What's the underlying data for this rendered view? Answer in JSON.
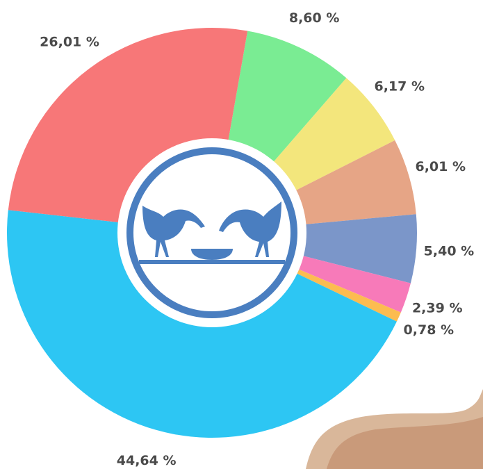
{
  "chart_data": {
    "type": "pie",
    "values": [
      8.6,
      6.17,
      6.01,
      5.4,
      2.39,
      0.78,
      44.64,
      26.01
    ],
    "value_labels": [
      "8,60 %",
      "6,17 %",
      "6,01 %",
      "5,40 %",
      "2,39 %",
      "0,78 %",
      "44,64 %",
      "26,01 %"
    ],
    "colors": [
      "#7aec93",
      "#f3e67c",
      "#e6a586",
      "#7b96c9",
      "#f77ab9",
      "#fcbc50",
      "#2dc6f3",
      "#f77778"
    ]
  }
}
